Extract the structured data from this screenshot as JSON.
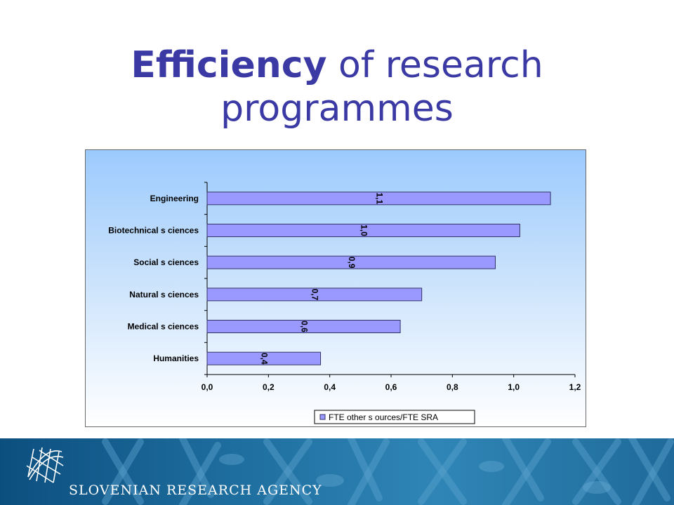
{
  "slide": {
    "title_bold": "Efficiency",
    "title_rest": " of research",
    "title_line2": "programmes"
  },
  "footer": {
    "agency": "SLOVENIAN RESEARCH AGENCY",
    "logo_icon": "sra-globe-grid-icon"
  },
  "colors": {
    "title": "#3b3aa4",
    "bar_fill": "#9999ff",
    "bar_stroke": "#333366",
    "chart_bg_top": "#9ccafd",
    "footer_bg": "#1e6e9f"
  },
  "chart_data": {
    "type": "bar",
    "orientation": "horizontal",
    "categories": [
      "Engineering",
      "Biotechnical s ciences",
      "Social s ciences",
      "Natural s ciences",
      "Medical s ciences",
      "Humanities"
    ],
    "series": [
      {
        "name": "FTE other s ources/FTE  SRA",
        "values": [
          1.12,
          1.02,
          0.94,
          0.7,
          0.63,
          0.37
        ],
        "data_labels": [
          "1,1",
          "1,0",
          "0,9",
          "0,7",
          "0,6",
          "0,4"
        ]
      }
    ],
    "x_ticks": [
      "0,0",
      "0,2",
      "0,4",
      "0,6",
      "0,8",
      "1,0",
      "1,2"
    ],
    "xlim": [
      0,
      1.2
    ],
    "grid": false,
    "legend_position": "bottom-right"
  }
}
